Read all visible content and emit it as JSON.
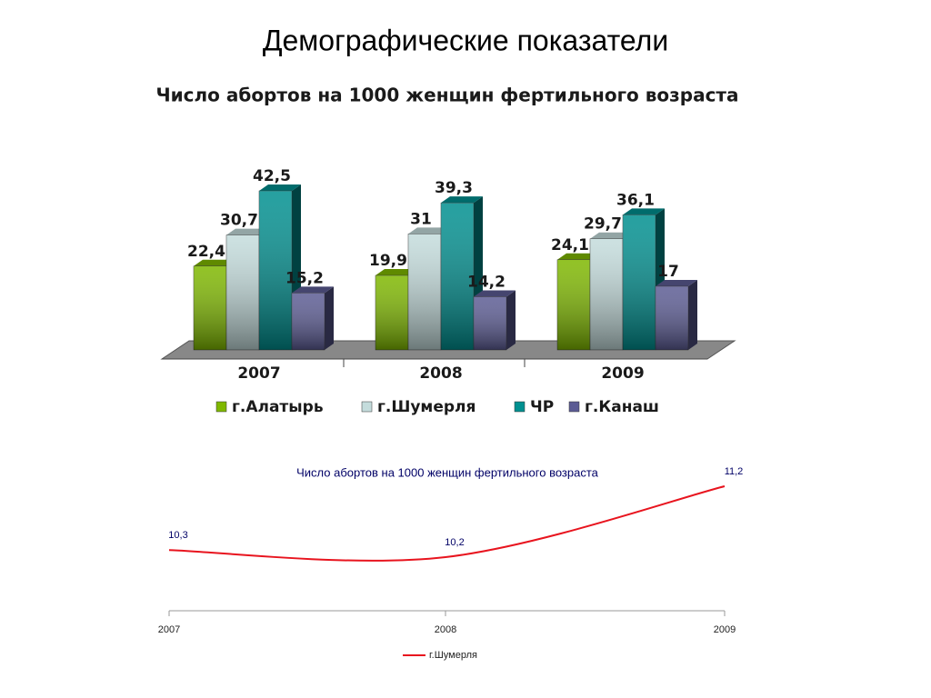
{
  "title": "Демографические показатели",
  "chart_data": [
    {
      "type": "bar3d",
      "title": "Число абортов на 1000 женщин фертильного возраста",
      "categories": [
        "2007",
        "2008",
        "2009"
      ],
      "series": [
        {
          "name": "г.Алатырь",
          "color": "#7fb800",
          "values": [
            22.4,
            19.9,
            24.1
          ],
          "value_labels": [
            "22,4",
            "19,9",
            "24,1"
          ]
        },
        {
          "name": "г.Шумерля",
          "color": "#c4dcdc",
          "values": [
            30.7,
            31,
            29.7
          ],
          "value_labels": [
            "30,7",
            "31",
            "29,7"
          ]
        },
        {
          "name": "ЧР",
          "color": "#009090",
          "values": [
            42.5,
            39.3,
            36.1
          ],
          "value_labels": [
            "42,5",
            "39,3",
            "36,1"
          ]
        },
        {
          "name": "г.Канаш",
          "color": "#5c5c94",
          "values": [
            15.2,
            14.2,
            17
          ],
          "value_labels": [
            "15,2",
            "14,2",
            "17"
          ]
        }
      ]
    },
    {
      "type": "line",
      "title": "Число абортов на 1000 женщин фертильного возраста",
      "categories": [
        "2007",
        "2008",
        "2009"
      ],
      "series": [
        {
          "name": "г.Шумерля",
          "color": "#e8141e",
          "values": [
            10.3,
            10.2,
            11.2
          ],
          "value_labels": [
            "10,3",
            "10,2",
            "11,2"
          ]
        }
      ]
    }
  ]
}
